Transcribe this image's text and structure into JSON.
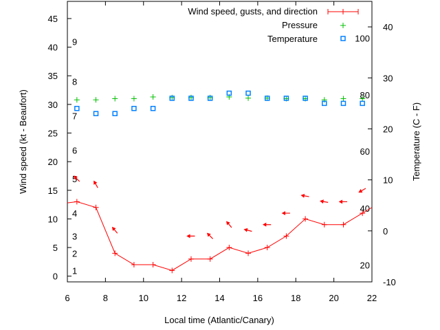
{
  "chart_data": {
    "type": "line",
    "xlabel": "Local time (Atlantic/Canary)",
    "ylabel": "Wind speed (kt - Beaufort)",
    "y2label": "Temperature (C - F)",
    "xlim": [
      6,
      22
    ],
    "ylim": [
      -1,
      48
    ],
    "y2lim": [
      -10,
      45
    ],
    "xticks": [
      6,
      8,
      10,
      12,
      14,
      16,
      18,
      20,
      22
    ],
    "yticks": [
      0,
      5,
      10,
      15,
      20,
      25,
      30,
      35,
      40,
      45
    ],
    "y2ticks": [
      -10,
      0,
      10,
      20,
      30,
      40
    ],
    "beaufort_labels": [
      {
        "label": "1",
        "kt": 1
      },
      {
        "label": "2",
        "kt": 4
      },
      {
        "label": "3",
        "kt": 7
      },
      {
        "label": "4",
        "kt": 11
      },
      {
        "label": "5",
        "kt": 17
      },
      {
        "label": "6",
        "kt": 22
      },
      {
        "label": "7",
        "kt": 28
      },
      {
        "label": "8",
        "kt": 34
      },
      {
        "label": "9",
        "kt": 41
      }
    ],
    "fahrenheit_labels": [
      {
        "label": "20",
        "c": -6.7
      },
      {
        "label": "40",
        "c": 4.4
      },
      {
        "label": "60",
        "c": 15.6
      },
      {
        "label": "80",
        "c": 26.7
      },
      {
        "label": "100",
        "c": 37.8
      }
    ],
    "legend": {
      "position": "top-right",
      "entries": [
        "Wind speed, gusts, and direction",
        "Pressure",
        "Temperature"
      ]
    },
    "colors": {
      "wind": "#ff0000",
      "pressure": "#00c000",
      "temperature": "#0080ff"
    },
    "x": [
      6.5,
      7.5,
      8.5,
      9.5,
      10.5,
      11.5,
      12.5,
      13.5,
      14.5,
      15.5,
      16.5,
      17.5,
      18.5,
      19.5,
      20.5,
      21.5
    ],
    "series": [
      {
        "name": "Wind speed",
        "values": [
          13,
          12,
          4,
          2,
          2,
          1,
          3,
          3,
          5,
          4,
          5,
          7,
          10,
          9,
          9,
          11
        ],
        "line_start": 12.8,
        "line_end": 12
      },
      {
        "name": "Gusts",
        "values": [
          17,
          16,
          8,
          null,
          null,
          null,
          7,
          7,
          9,
          8,
          9,
          11,
          14,
          13,
          13,
          15
        ]
      },
      {
        "name": "Wind direction (arrow heading deg)",
        "values": [
          135,
          120,
          130,
          null,
          null,
          null,
          180,
          135,
          130,
          165,
          180,
          180,
          170,
          170,
          180,
          210
        ]
      },
      {
        "name": "Pressure",
        "values": [
          30.8,
          30.8,
          31,
          31,
          31.3,
          31.2,
          31.2,
          31.2,
          31.3,
          31.1,
          31.1,
          31,
          31,
          30.8,
          31,
          31
        ]
      },
      {
        "name": "Temperature",
        "values": [
          24,
          23,
          23,
          24,
          24,
          26,
          26,
          26,
          27,
          27,
          26,
          26,
          26,
          25,
          25,
          25
        ]
      }
    ]
  }
}
